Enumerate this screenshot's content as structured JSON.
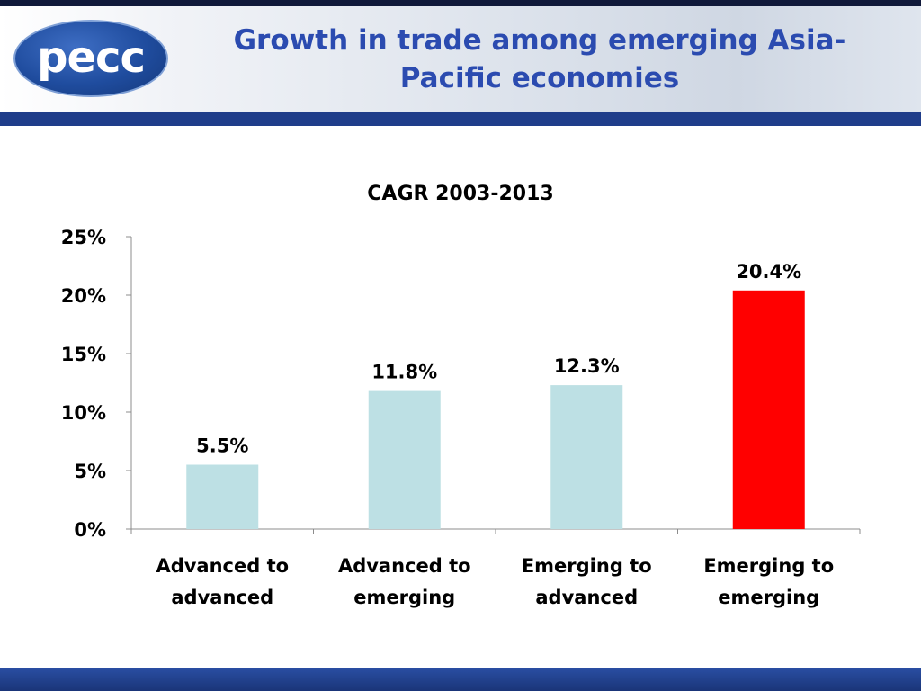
{
  "logo": {
    "text": "pecc"
  },
  "title": {
    "line1": "Growth in trade among emerging Asia-",
    "line2": "Pacific economies"
  },
  "chart_data": {
    "type": "bar",
    "title": "CAGR 2003-2013",
    "categories": [
      [
        "Advanced to",
        "advanced"
      ],
      [
        "Advanced to",
        "emerging"
      ],
      [
        "Emerging to",
        "advanced"
      ],
      [
        "Emerging to",
        "emerging"
      ]
    ],
    "values": [
      5.5,
      11.8,
      12.3,
      20.4
    ],
    "data_labels": [
      "5.5%",
      "11.8%",
      "12.3%",
      "20.4%"
    ],
    "bar_colors": [
      "#bde0e4",
      "#bde0e4",
      "#bde0e4",
      "#ff0000"
    ],
    "ylim": [
      0,
      25
    ],
    "yticks": [
      0,
      5,
      10,
      15,
      20,
      25
    ],
    "ytick_labels": [
      "0%",
      "5%",
      "10%",
      "15%",
      "20%",
      "25%"
    ],
    "xlabel": "",
    "ylabel": "",
    "grid": false,
    "legend": "none"
  },
  "colors": {
    "title": "#2b4bb0",
    "header_bar": "#1f3d8a",
    "footer_bar": "#1f3d8a"
  }
}
